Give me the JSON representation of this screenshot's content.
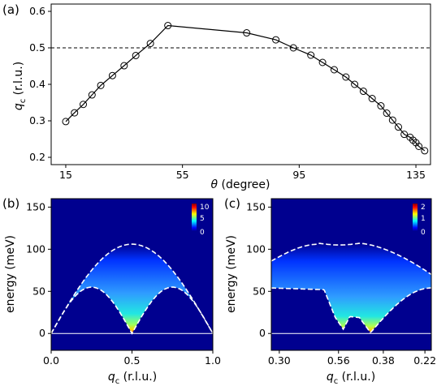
{
  "chart_data": [
    {
      "panel_label": "(a)",
      "type": "line",
      "xlabel_symbol": "θ",
      "xlabel_unit": "(degree)",
      "ylabel_symbol": "q",
      "ylabel_sub": "c",
      "ylabel_unit": "(r.l.u.)",
      "xlim": [
        10,
        140
      ],
      "ylim": [
        0.18,
        0.62
      ],
      "xticks": [
        "15",
        "55",
        "95",
        "135"
      ],
      "xtick_values": [
        15,
        55,
        95,
        135
      ],
      "yticks": [
        "0.2",
        "0.3",
        "0.4",
        "0.5",
        "0.6"
      ],
      "ytick_values": [
        0.2,
        0.3,
        0.4,
        0.5,
        0.6
      ],
      "reference_line": {
        "y": 0.5,
        "style": "dashed"
      },
      "series": [
        {
          "marker": "open-circle",
          "x": [
            15,
            18,
            21,
            24,
            27,
            31,
            35,
            39,
            44,
            50,
            77,
            87,
            93,
            99,
            103,
            107,
            111,
            114,
            117,
            120,
            123,
            125,
            127,
            129,
            131,
            133,
            134,
            135,
            136,
            138
          ],
          "y": [
            0.298,
            0.322,
            0.345,
            0.371,
            0.397,
            0.424,
            0.451,
            0.479,
            0.512,
            0.561,
            0.541,
            0.522,
            0.5,
            0.48,
            0.46,
            0.44,
            0.42,
            0.4,
            0.381,
            0.361,
            0.341,
            0.321,
            0.302,
            0.283,
            0.263,
            0.255,
            0.247,
            0.24,
            0.23,
            0.218
          ]
        }
      ]
    },
    {
      "panel_label": "(b)",
      "type": "heatmap",
      "xlabel_symbol": "q",
      "xlabel_sub": "c",
      "xlabel_unit": "(r.l.u.)",
      "ylabel": "energy (meV)",
      "xlim": [
        0.0,
        1.0
      ],
      "ylim": [
        -20,
        160
      ],
      "xticks": [
        "0.0",
        "0.5",
        "1.0"
      ],
      "yticks": [
        "0",
        "50",
        "100",
        "150"
      ],
      "ytick_values": [
        0,
        50,
        100,
        150
      ],
      "colorbar": {
        "ticks": [
          "10",
          "5",
          "0"
        ],
        "min": 0,
        "max": 10
      },
      "upper_boundary_peak_meV": 106,
      "lower_boundary_peak_meV": 55,
      "lower_boundary_zeros": [
        0.0,
        0.5,
        1.0
      ]
    },
    {
      "panel_label": "(c)",
      "type": "heatmap",
      "xlabel_symbol": "q",
      "xlabel_sub": "c",
      "xlabel_unit": "(r.l.u.)",
      "ylabel": "energy (meV)",
      "ylim": [
        -20,
        160
      ],
      "xticks": [
        "0.30",
        "0.56",
        "0.38",
        "0.22"
      ],
      "yticks": [
        "0",
        "50",
        "100",
        "150"
      ],
      "ytick_values": [
        0,
        50,
        100,
        150
      ],
      "colorbar": {
        "ticks": [
          "2",
          "1",
          "0"
        ],
        "min": 0,
        "max": 2
      },
      "upper_boundary_meV_range": [
        70,
        107
      ],
      "lower_boundary_peak_meV": 54
    }
  ]
}
